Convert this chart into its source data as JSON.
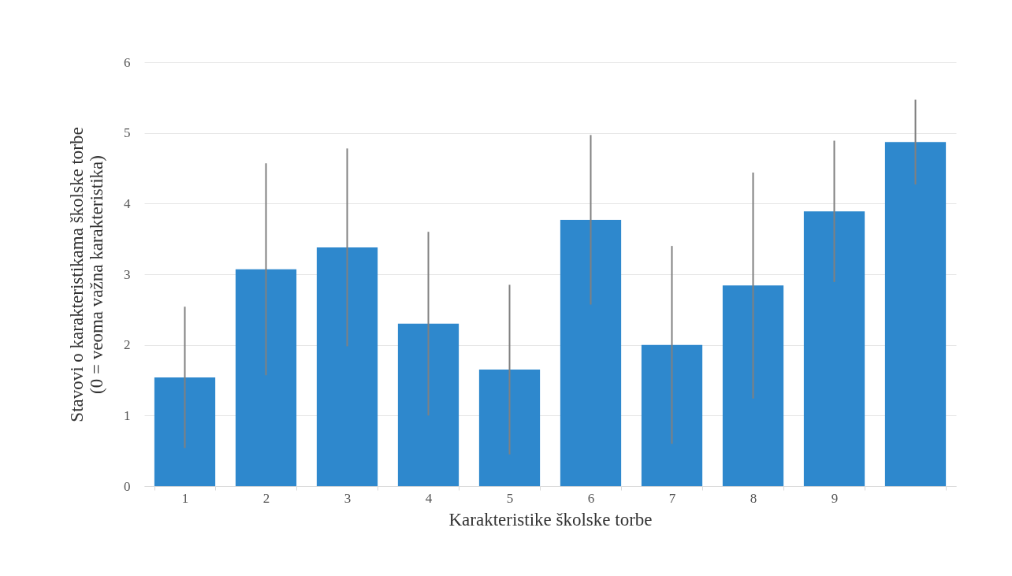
{
  "chart_data": {
    "type": "bar",
    "xlabel": "Karakteristike školske torbe",
    "ylabel": "Stavovi o karakteristikama školske torbe\n(0 = veoma važna karakteristika)",
    "categories": [
      "1",
      "2",
      "3",
      "4",
      "5",
      "6",
      "7",
      "8",
      "9",
      null
    ],
    "values": [
      1.54,
      3.07,
      3.38,
      2.3,
      1.65,
      3.77,
      2.0,
      2.84,
      3.89,
      4.87
    ],
    "errors": [
      1.0,
      1.5,
      1.4,
      1.3,
      1.2,
      1.2,
      1.4,
      1.6,
      1.0,
      0.6
    ],
    "color": "#2e88cd",
    "ylim": [
      0,
      6
    ],
    "yticks": [
      0,
      1,
      2,
      3,
      4,
      5,
      6
    ],
    "grid": "y"
  }
}
